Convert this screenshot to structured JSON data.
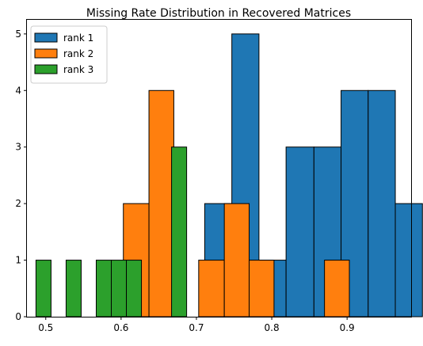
{
  "chart_data": {
    "type": "histogram",
    "title": "Missing Rate Distribution in Recovered Matrices",
    "xlabel": "",
    "ylabel": "",
    "xlim": [
      0.475,
      0.985
    ],
    "ylim": [
      0,
      5.25
    ],
    "xticks": [
      {
        "value": 0.5,
        "label": "0.5"
      },
      {
        "value": 0.6,
        "label": "0.6"
      },
      {
        "value": 0.7,
        "label": "0.7"
      },
      {
        "value": 0.8,
        "label": "0.8"
      },
      {
        "value": 0.9,
        "label": "0.9"
      }
    ],
    "yticks": [
      {
        "value": 0,
        "label": "0"
      },
      {
        "value": 1,
        "label": "1"
      },
      {
        "value": 2,
        "label": "2"
      },
      {
        "value": 3,
        "label": "3"
      },
      {
        "value": 4,
        "label": "4"
      },
      {
        "value": 5,
        "label": "5"
      }
    ],
    "grid": false,
    "legend_position": "top-left",
    "series": [
      {
        "name": "rank 1",
        "color": "#1f77b4",
        "bins": [
          {
            "x0": 0.711,
            "x1": 0.747,
            "count": 2
          },
          {
            "x0": 0.747,
            "x1": 0.783,
            "count": 5
          },
          {
            "x0": 0.783,
            "x1": 0.819,
            "count": 1
          },
          {
            "x0": 0.819,
            "x1": 0.856,
            "count": 3
          },
          {
            "x0": 0.856,
            "x1": 0.892,
            "count": 3
          },
          {
            "x0": 0.892,
            "x1": 0.928,
            "count": 4
          },
          {
            "x0": 0.928,
            "x1": 0.964,
            "count": 4
          },
          {
            "x0": 0.964,
            "x1": 1.0,
            "count": 2
          }
        ]
      },
      {
        "name": "rank 2",
        "color": "#ff7f0e",
        "bins": [
          {
            "x0": 0.603,
            "x1": 0.637,
            "count": 2
          },
          {
            "x0": 0.637,
            "x1": 0.67,
            "count": 4
          },
          {
            "x0": 0.67,
            "x1": 0.703,
            "count": 0
          },
          {
            "x0": 0.703,
            "x1": 0.737,
            "count": 1
          },
          {
            "x0": 0.737,
            "x1": 0.77,
            "count": 2
          },
          {
            "x0": 0.77,
            "x1": 0.803,
            "count": 1
          },
          {
            "x0": 0.803,
            "x1": 0.837,
            "count": 0
          },
          {
            "x0": 0.837,
            "x1": 0.87,
            "count": 0
          },
          {
            "x0": 0.87,
            "x1": 0.903,
            "count": 1
          }
        ]
      },
      {
        "name": "rank 3",
        "color": "#2ca02c",
        "bins": [
          {
            "x0": 0.487,
            "x1": 0.507,
            "count": 1
          },
          {
            "x0": 0.507,
            "x1": 0.527,
            "count": 0
          },
          {
            "x0": 0.527,
            "x1": 0.547,
            "count": 1
          },
          {
            "x0": 0.547,
            "x1": 0.567,
            "count": 0
          },
          {
            "x0": 0.567,
            "x1": 0.587,
            "count": 1
          },
          {
            "x0": 0.587,
            "x1": 0.607,
            "count": 1
          },
          {
            "x0": 0.607,
            "x1": 0.627,
            "count": 1
          },
          {
            "x0": 0.627,
            "x1": 0.647,
            "count": 0
          },
          {
            "x0": 0.647,
            "x1": 0.667,
            "count": 0
          },
          {
            "x0": 0.667,
            "x1": 0.687,
            "count": 3
          }
        ]
      }
    ]
  }
}
